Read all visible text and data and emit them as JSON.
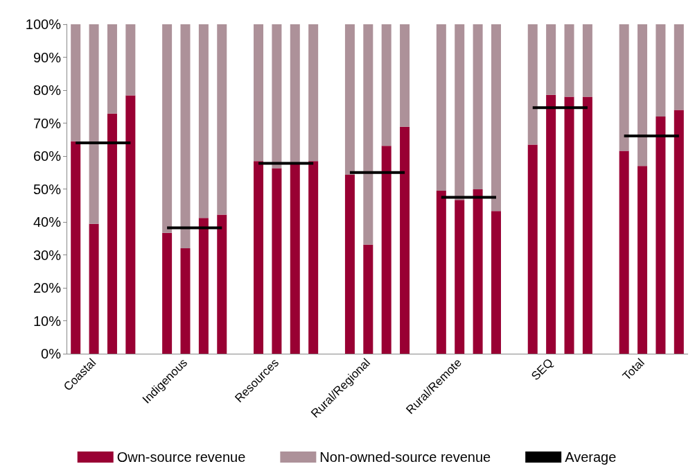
{
  "chart_data": {
    "type": "bar",
    "stacked": true,
    "categories": [
      null,
      "Coastal",
      null,
      null,
      null,
      null,
      "Indigenous",
      null,
      null,
      null,
      null,
      "Resources",
      null,
      null,
      null,
      null,
      "Rural/Regional",
      null,
      null,
      null,
      null,
      "Rural/Remote",
      null,
      null,
      null,
      null,
      "SEQ",
      null,
      null,
      null,
      null,
      "Total",
      null,
      null
    ],
    "series": [
      {
        "name": "Own-source revenue",
        "color": "#990033",
        "values": [
          64.5,
          39.4,
          72.9,
          78.4,
          null,
          36.7,
          32,
          41.2,
          42.2,
          null,
          58.5,
          56.3,
          57.5,
          58.5,
          null,
          54.3,
          33.1,
          63.1,
          68.9,
          null,
          49.5,
          46.7,
          49.9,
          43.3,
          null,
          63.5,
          78.6,
          78,
          78,
          null,
          61.6,
          57,
          72,
          74
        ]
      },
      {
        "name": "Non-owned-source revenue",
        "color": "#ad9199",
        "values": [
          35.5,
          60.6,
          27.1,
          21.6,
          null,
          63.3,
          68,
          58.8,
          57.8,
          null,
          41.5,
          43.7,
          42.5,
          41.5,
          null,
          45.7,
          66.9,
          36.9,
          31.1,
          null,
          50.5,
          53.3,
          50.1,
          56.7,
          null,
          36.5,
          21.4,
          22,
          22,
          null,
          38.4,
          43,
          28,
          26
        ]
      },
      {
        "name": "Average",
        "type": "line",
        "color": "#000000",
        "values": [
          64,
          64,
          64,
          64,
          null,
          38.2,
          38.2,
          38.2,
          38.2,
          null,
          57.8,
          57.8,
          57.8,
          57.8,
          null,
          55,
          55,
          55,
          55,
          null,
          47.5,
          47.5,
          47.5,
          47.5,
          null,
          74.7,
          74.7,
          74.7,
          74.7,
          null,
          66.1,
          66.1,
          66.1,
          66.1
        ]
      }
    ],
    "ylim": [
      0,
      100
    ],
    "yticks": [
      {
        "value": 0,
        "label": "0%"
      },
      {
        "value": 10,
        "label": "10%"
      },
      {
        "value": 20,
        "label": "20%"
      },
      {
        "value": 30,
        "label": "30%"
      },
      {
        "value": 40,
        "label": "40%"
      },
      {
        "value": 50,
        "label": "50%"
      },
      {
        "value": 60,
        "label": "60%"
      },
      {
        "value": 70,
        "label": "70%"
      },
      {
        "value": 80,
        "label": "80%"
      },
      {
        "value": 90,
        "label": "90%"
      },
      {
        "value": 100,
        "label": "100%"
      }
    ],
    "grid": false,
    "legend": "bottom",
    "marker": "none",
    "line_style": "solid"
  }
}
